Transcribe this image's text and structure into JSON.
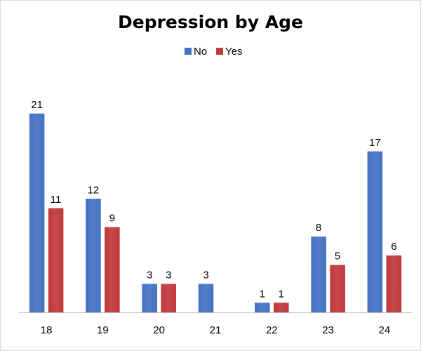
{
  "chart_data": {
    "type": "bar",
    "title": "Depression by Age",
    "xlabel": "",
    "ylabel": "",
    "categories": [
      "18",
      "19",
      "20",
      "21",
      "22",
      "23",
      "24"
    ],
    "series": [
      {
        "name": "No",
        "color": "#4472c4",
        "values": [
          21,
          12,
          3,
          3,
          1,
          8,
          17
        ]
      },
      {
        "name": "Yes",
        "color": "#c0393b",
        "values": [
          11,
          9,
          3,
          null,
          1,
          5,
          6
        ]
      }
    ],
    "ylim": [
      0,
      21
    ],
    "grid": false,
    "legend_placement": "top-center",
    "data_labels": true
  }
}
